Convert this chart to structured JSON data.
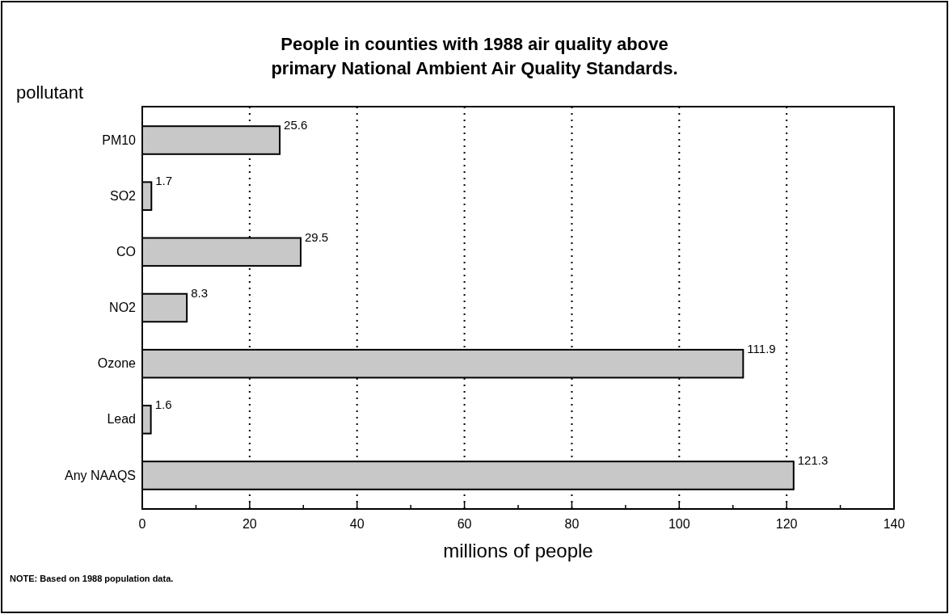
{
  "chart_data": {
    "type": "bar",
    "orientation": "horizontal",
    "title": "People in counties with 1988 air quality above\nprimary National Ambient Air Quality Standards.",
    "ylabel": "pollutant",
    "xlabel": "millions of people",
    "categories": [
      "PM10",
      "SO2",
      "CO",
      "NO2",
      "Ozone",
      "Lead",
      "Any NAAQS"
    ],
    "values": [
      25.6,
      1.7,
      29.5,
      8.3,
      111.9,
      1.6,
      121.3
    ],
    "color": "#c8c8c8",
    "data_labels": true,
    "xlim": [
      0,
      140
    ],
    "xticks": [
      0,
      {
        "value": 10,
        "label": null
      },
      20,
      {
        "value": 30,
        "label": null
      },
      40,
      {
        "value": 50,
        "label": null
      },
      60,
      {
        "value": 70,
        "label": null
      },
      80,
      {
        "value": 90,
        "label": null
      },
      100,
      {
        "value": 110,
        "label": null
      },
      120,
      {
        "value": 130,
        "label": null
      },
      140
    ],
    "grid": "x",
    "annotations": [
      "NOTE:  Based on 1988 population data."
    ]
  }
}
